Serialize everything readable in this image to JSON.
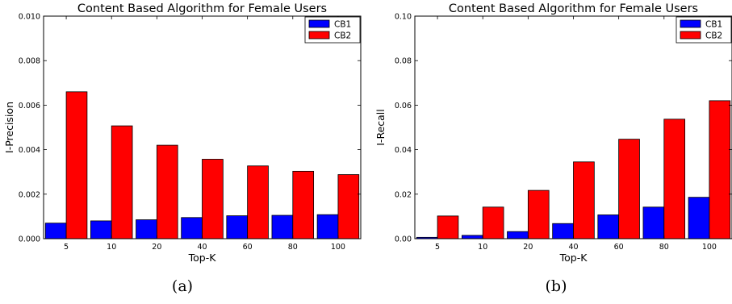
{
  "chart_data": [
    {
      "type": "bar",
      "panel_label": "(a)",
      "title": "Content Based Algorithm for Female Users",
      "xlabel": "Top-K",
      "ylabel": "I-Precision",
      "categories": [
        "5",
        "10",
        "20",
        "40",
        "60",
        "80",
        "100"
      ],
      "ylim": [
        0,
        0.01
      ],
      "yticks": [
        "0.000",
        "0.002",
        "0.004",
        "0.006",
        "0.008",
        "0.010"
      ],
      "legend_position": "top-right",
      "grid": false,
      "series": [
        {
          "name": "CB1",
          "color": "#0000ff",
          "values": [
            0.0007,
            0.0008,
            0.00085,
            0.00095,
            0.00103,
            0.00105,
            0.00108
          ]
        },
        {
          "name": "CB2",
          "color": "#ff0000",
          "values": [
            0.0066,
            0.00507,
            0.0042,
            0.00357,
            0.00327,
            0.00303,
            0.00288
          ]
        }
      ]
    },
    {
      "type": "bar",
      "panel_label": "(b)",
      "title": "Content Based Algorithm for Female Users",
      "xlabel": "Top-K",
      "ylabel": "I-Recall",
      "categories": [
        "5",
        "10",
        "20",
        "40",
        "60",
        "80",
        "100"
      ],
      "ylim": [
        0,
        0.1
      ],
      "yticks": [
        "0.00",
        "0.02",
        "0.04",
        "0.06",
        "0.08",
        "0.10"
      ],
      "legend_position": "top-right",
      "grid": false,
      "series": [
        {
          "name": "CB1",
          "color": "#0000ff",
          "values": [
            0.0006,
            0.0015,
            0.0032,
            0.0068,
            0.0107,
            0.0142,
            0.0186
          ]
        },
        {
          "name": "CB2",
          "color": "#ff0000",
          "values": [
            0.0102,
            0.0142,
            0.0217,
            0.0345,
            0.0447,
            0.0537,
            0.062
          ]
        }
      ]
    }
  ]
}
